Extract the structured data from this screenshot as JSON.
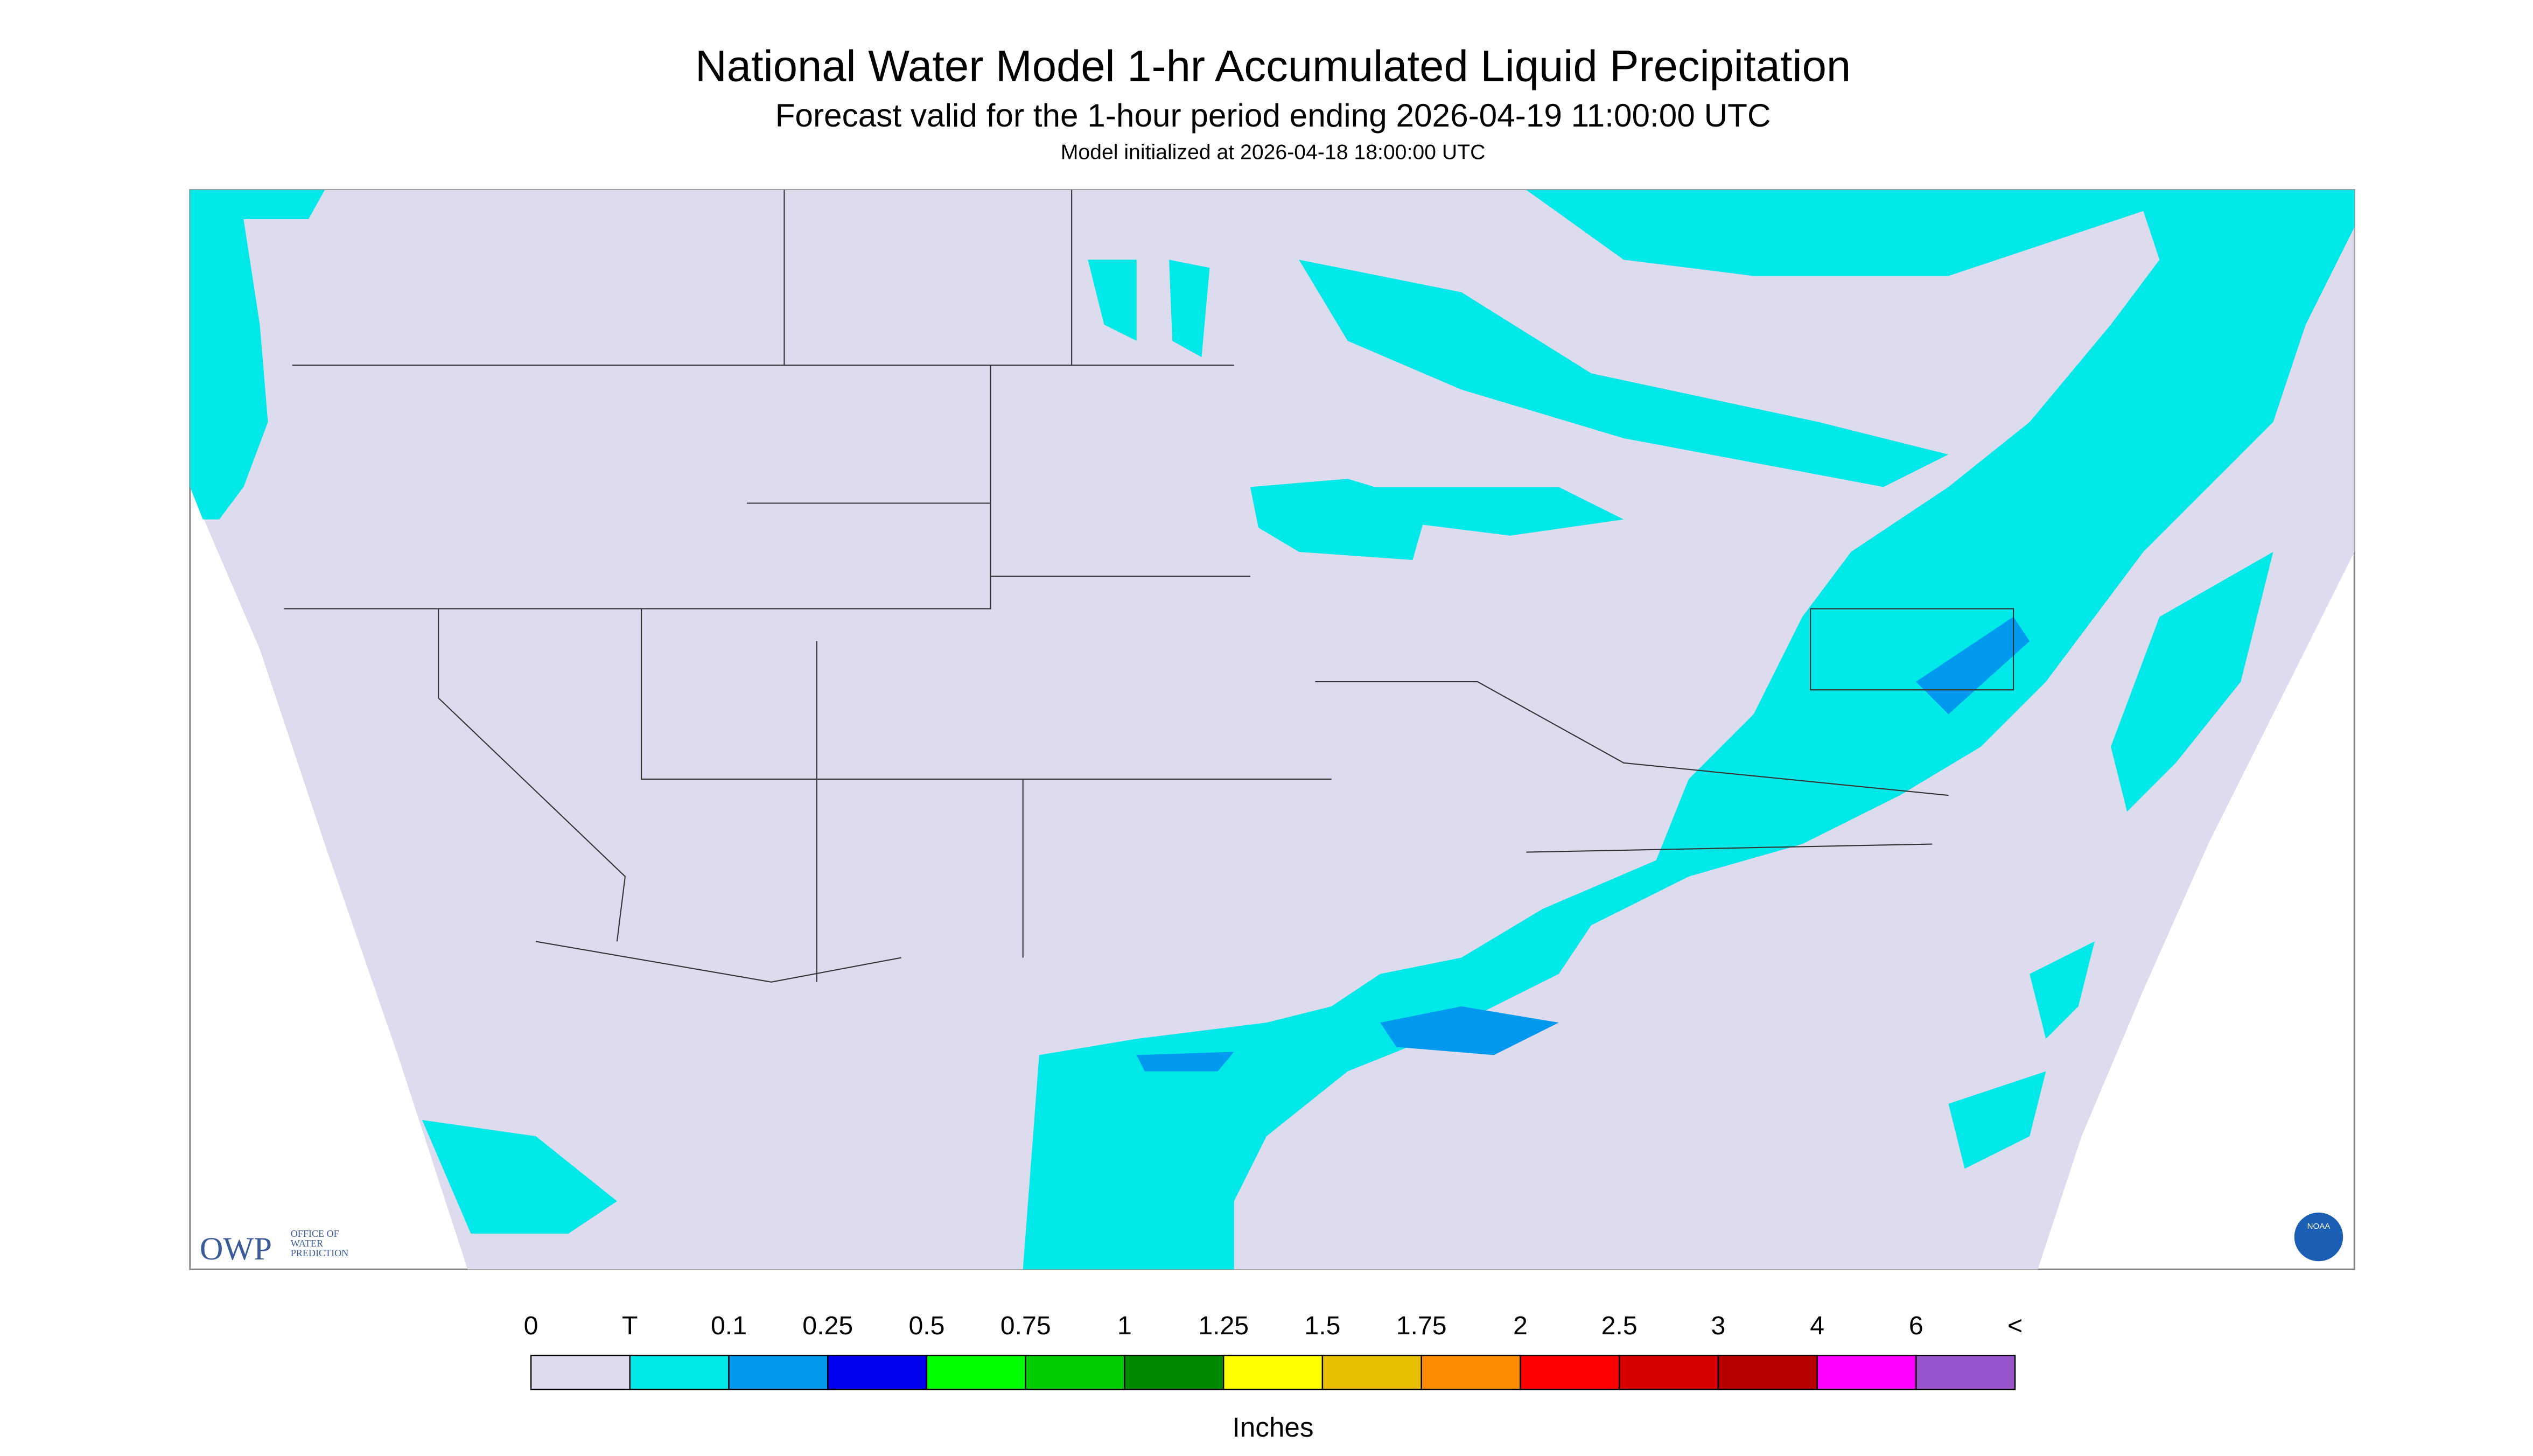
{
  "header": {
    "title": "National Water Model 1-hr Accumulated Liquid Precipitation",
    "subtitle": "Forecast valid for the 1-hour period ending 2026-04-19 11:00:00 UTC",
    "init": "Model initialized at 2026-04-18 18:00:00 UTC"
  },
  "logo": {
    "name": "OWP",
    "text": [
      "OFFICE OF",
      "WATER",
      "PREDICTION"
    ],
    "agency": "NOAA"
  },
  "legend": {
    "labels": [
      "0",
      "T",
      "0.1",
      "0.25",
      "0.5",
      "0.75",
      "1",
      "1.25",
      "1.5",
      "1.75",
      "2",
      "2.5",
      "3",
      "4",
      "6",
      "<"
    ],
    "colors": [
      "#dcdcee",
      "#00e8e8",
      "#0099f0",
      "#0000f0",
      "#00ff00",
      "#00cc00",
      "#008a00",
      "#ffff00",
      "#e6c000",
      "#ff8c00",
      "#ff0000",
      "#d90000",
      "#b80000",
      "#ff00ff",
      "#9955cc"
    ],
    "unit": "Inches"
  }
}
